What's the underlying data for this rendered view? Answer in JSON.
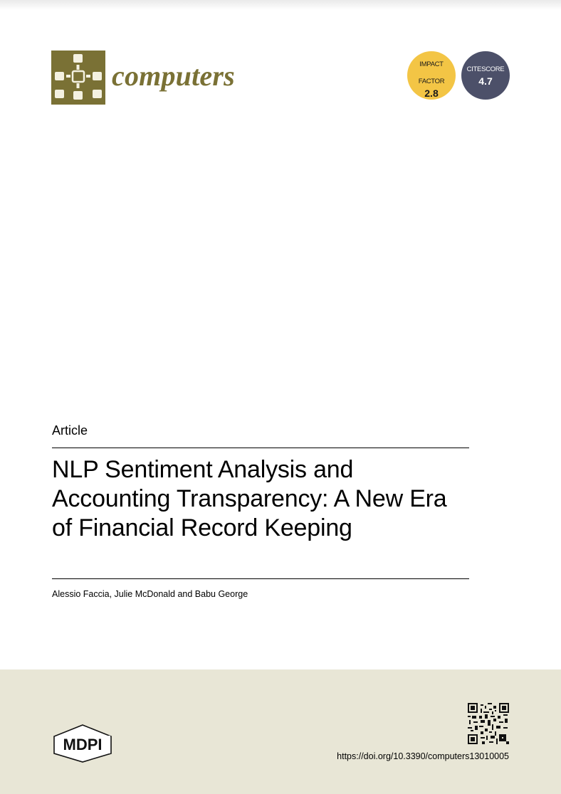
{
  "journal": {
    "name": "computers",
    "brand_color": "#7a7135",
    "logo_icon": "network-nodes-icon"
  },
  "metrics": {
    "impact_factor": {
      "label_line1": "IMPACT",
      "label_line2": "FACTOR",
      "value": "2.8",
      "color": "#f3c545"
    },
    "citescore": {
      "label": "CITESCORE",
      "value": "4.7",
      "color": "#4c5069"
    }
  },
  "article": {
    "type": "Article",
    "title": "NLP Sentiment Analysis and Accounting Transparency: A New Era of Financial Record Keeping",
    "authors": "Alessio Faccia, Julie McDonald and Babu George"
  },
  "footer": {
    "publisher": "MDPI",
    "doi_url": "https://doi.org/10.3390/computers13010005",
    "background_color": "#e8e6d6",
    "qr_icon": "qr-code-icon"
  }
}
